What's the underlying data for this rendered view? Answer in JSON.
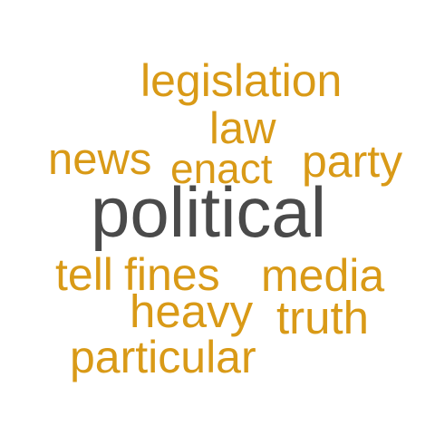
{
  "colors": {
    "background": "#ffffff",
    "accent": "#d99a17",
    "center": "#4a4a4a"
  },
  "words": {
    "legislation": "legislation",
    "law": "law",
    "news": "news",
    "enact": "enact",
    "party": "party",
    "political": "political",
    "tell": "tell",
    "fines": "fines",
    "media": "media",
    "heavy": "heavy",
    "truth": "truth",
    "particular": "particular"
  }
}
